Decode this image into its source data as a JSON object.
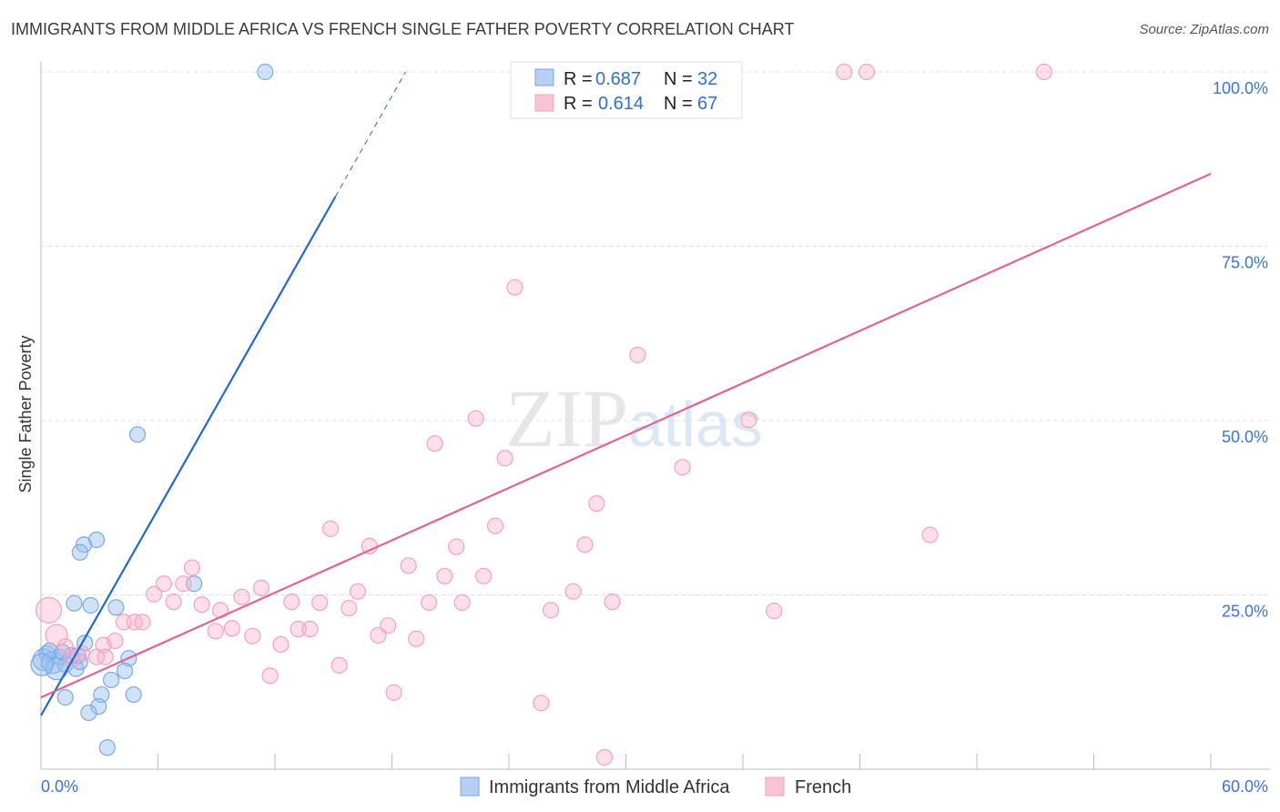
{
  "chart_data": {
    "type": "scatter",
    "title": "IMMIGRANTS FROM MIDDLE AFRICA VS FRENCH SINGLE FATHER POVERTY CORRELATION CHART",
    "source": "Source: ZipAtlas.com",
    "xlabel": "",
    "ylabel": "Single Father Poverty",
    "xlim": [
      0,
      60
    ],
    "ylim": [
      0,
      100
    ],
    "x_tick_labels": [
      "0.0%",
      "60.0%"
    ],
    "y_ticks": [
      25,
      50,
      75,
      100
    ],
    "y_tick_labels": [
      "25.0%",
      "50.0%",
      "75.0%",
      "100.0%"
    ],
    "grid": true,
    "watermark": "ZIPatlas",
    "legend_stats": [
      {
        "r_label": "R =",
        "r": "0.687",
        "n_label": "N =",
        "n": "32"
      },
      {
        "r_label": "R =",
        "r": "0.614",
        "n_label": "N =",
        "n": "67"
      }
    ],
    "series": [
      {
        "name": "Immigrants from Middle Africa",
        "color": "#7aa8e8",
        "line_color": "#2268d0",
        "trend": {
          "x0": 0,
          "y0": 7.7,
          "x1": 15.1,
          "y1": 82.1,
          "dash_to_x": 18.7,
          "dash_to_y": 100
        },
        "points": [
          [
            11.5,
            100
          ],
          [
            4.95,
            48.0
          ],
          [
            2.85,
            32.9
          ],
          [
            2.2,
            32.2
          ],
          [
            2.0,
            31.1
          ],
          [
            7.85,
            26.6
          ],
          [
            1.7,
            23.8
          ],
          [
            2.55,
            23.5
          ],
          [
            3.85,
            23.2
          ],
          [
            2.25,
            18.1
          ],
          [
            4.5,
            15.9
          ],
          [
            4.3,
            14.1
          ],
          [
            3.6,
            12.8
          ],
          [
            3.1,
            10.7
          ],
          [
            4.75,
            10.7
          ],
          [
            1.25,
            10.3
          ],
          [
            2.95,
            9.0
          ],
          [
            2.45,
            8.1
          ],
          [
            3.4,
            3.1
          ],
          [
            0.15,
            15.7
          ],
          [
            0.3,
            16.6
          ],
          [
            0.6,
            15.3
          ],
          [
            0.95,
            16.1
          ],
          [
            1.25,
            15.0
          ],
          [
            1.55,
            16.3
          ],
          [
            1.8,
            14.4
          ],
          [
            0.8,
            14.4
          ],
          [
            0.45,
            17.0
          ],
          [
            2.0,
            15.4
          ],
          [
            1.1,
            16.8
          ],
          [
            1.9,
            16.3
          ],
          [
            0.05,
            15.0
          ]
        ]
      },
      {
        "name": "French",
        "color": "#f4a3bb",
        "line_color": "#e0648f",
        "trend": {
          "x0": 0,
          "y0": 10.3,
          "x1": 60,
          "y1": 85.4
        },
        "points": [
          [
            24.65,
            100
          ],
          [
            33.7,
            100
          ],
          [
            41.2,
            100
          ],
          [
            42.35,
            100
          ],
          [
            51.45,
            100
          ],
          [
            24.3,
            69.1
          ],
          [
            30.6,
            59.4
          ],
          [
            22.3,
            50.3
          ],
          [
            36.3,
            50.1
          ],
          [
            20.2,
            46.7
          ],
          [
            23.8,
            44.6
          ],
          [
            32.9,
            43.3
          ],
          [
            28.5,
            38.1
          ],
          [
            14.85,
            34.5
          ],
          [
            23.3,
            34.9
          ],
          [
            45.6,
            33.6
          ],
          [
            16.85,
            32.0
          ],
          [
            21.3,
            31.9
          ],
          [
            27.9,
            32.2
          ],
          [
            18.85,
            29.2
          ],
          [
            7.75,
            28.9
          ],
          [
            20.7,
            27.7
          ],
          [
            22.7,
            27.7
          ],
          [
            6.3,
            26.6
          ],
          [
            7.3,
            26.6
          ],
          [
            11.3,
            26.0
          ],
          [
            16.25,
            25.5
          ],
          [
            27.3,
            25.5
          ],
          [
            5.8,
            25.1
          ],
          [
            10.3,
            24.7
          ],
          [
            6.8,
            24.0
          ],
          [
            12.85,
            24.0
          ],
          [
            14.3,
            23.9
          ],
          [
            19.9,
            23.9
          ],
          [
            21.6,
            23.9
          ],
          [
            29.3,
            24.0
          ],
          [
            8.25,
            23.6
          ],
          [
            15.8,
            23.1
          ],
          [
            9.2,
            22.8
          ],
          [
            26.15,
            22.8
          ],
          [
            37.6,
            22.7
          ],
          [
            0.4,
            22.8
          ],
          [
            4.25,
            21.1
          ],
          [
            4.8,
            21.1
          ],
          [
            5.2,
            21.1
          ],
          [
            9.8,
            20.2
          ],
          [
            8.95,
            19.8
          ],
          [
            13.2,
            20.1
          ],
          [
            13.8,
            20.1
          ],
          [
            17.8,
            20.6
          ],
          [
            17.3,
            19.2
          ],
          [
            10.85,
            19.1
          ],
          [
            19.25,
            18.7
          ],
          [
            0.8,
            19.2
          ],
          [
            3.8,
            18.4
          ],
          [
            3.2,
            17.8
          ],
          [
            12.3,
            17.9
          ],
          [
            1.25,
            17.6
          ],
          [
            2.1,
            16.6
          ],
          [
            2.85,
            16.1
          ],
          [
            3.3,
            16.1
          ],
          [
            15.3,
            14.9
          ],
          [
            11.75,
            13.4
          ],
          [
            18.1,
            11.0
          ],
          [
            25.65,
            9.5
          ],
          [
            28.9,
            1.7
          ],
          [
            1.6,
            15.7
          ]
        ]
      }
    ]
  }
}
